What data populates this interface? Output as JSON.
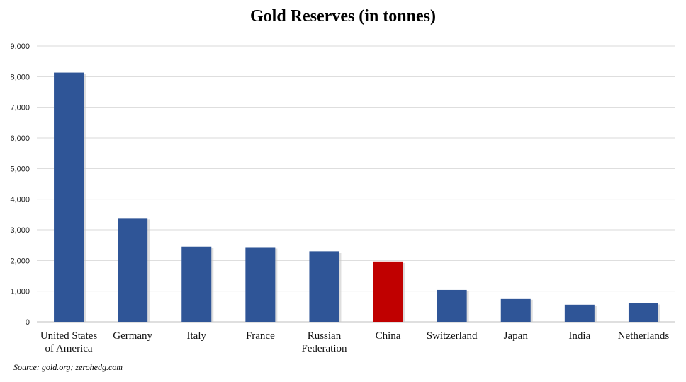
{
  "chart_data": {
    "type": "bar",
    "title": "Gold Reserves (in tonnes)",
    "categories": [
      [
        "United States",
        "of America"
      ],
      [
        "Germany"
      ],
      [
        "Italy"
      ],
      [
        "France"
      ],
      [
        "Russian",
        "Federation"
      ],
      [
        "China"
      ],
      [
        "Switzerland"
      ],
      [
        "Japan"
      ],
      [
        "India"
      ],
      [
        "Netherlands"
      ]
    ],
    "values": [
      8133,
      3384,
      2452,
      2435,
      2299,
      1965,
      1040,
      765,
      558,
      612
    ],
    "highlight_index": 5,
    "ylim": [
      0,
      9000
    ],
    "yticks": [
      "0",
      "1,000",
      "2,000",
      "3,000",
      "4,000",
      "5,000",
      "6,000",
      "7,000",
      "8,000",
      "9,000"
    ],
    "grid": true,
    "colors": {
      "bar": "#2F5597",
      "highlight": "#C00000",
      "grid": "#D9D9D9"
    }
  },
  "source": "Source: gold.org; zerohedg.com"
}
